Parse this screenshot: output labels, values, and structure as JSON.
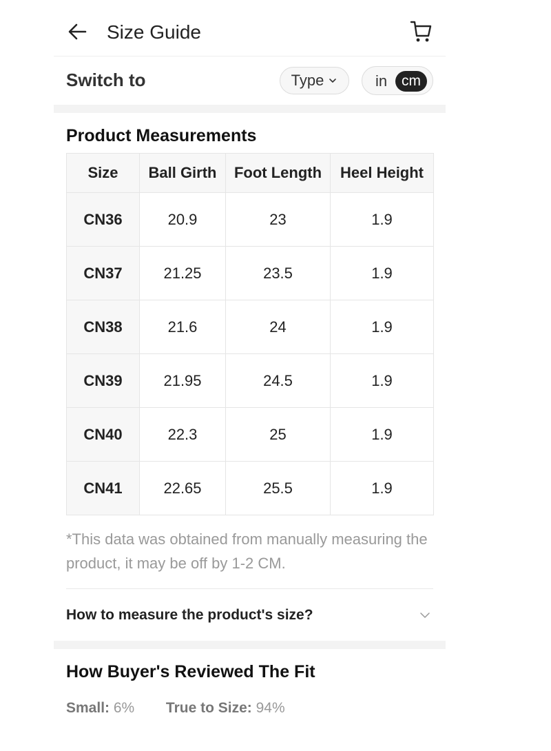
{
  "header": {
    "title": "Size Guide",
    "back_icon": "arrow-left-icon",
    "cart_icon": "shopping-cart-icon"
  },
  "switch": {
    "label": "Switch to",
    "type_label": "Type",
    "unit_in": "in",
    "unit_cm": "cm",
    "selected_unit": "cm"
  },
  "measurements": {
    "title": "Product Measurements",
    "columns": [
      "Size",
      "Ball Girth",
      "Foot Length",
      "Heel Height"
    ],
    "rows": [
      [
        "CN36",
        "20.9",
        "23",
        "1.9"
      ],
      [
        "CN37",
        "21.25",
        "23.5",
        "1.9"
      ],
      [
        "CN38",
        "21.6",
        "24",
        "1.9"
      ],
      [
        "CN39",
        "21.95",
        "24.5",
        "1.9"
      ],
      [
        "CN40",
        "22.3",
        "25",
        "1.9"
      ],
      [
        "CN41",
        "22.65",
        "25.5",
        "1.9"
      ]
    ],
    "note": "*This data was obtained from manually measuring the product, it may be off by 1-2 CM."
  },
  "how_to_measure": {
    "label": "How to measure the product's size?"
  },
  "fit": {
    "title": "How Buyer's Reviewed The Fit",
    "small_label": "Small:",
    "small_value": "6%",
    "true_label": "True to Size:",
    "true_value": "94%"
  },
  "colors": {
    "accent_dark": "#222222",
    "muted_text": "#999999",
    "band": "#f3f3f3"
  }
}
